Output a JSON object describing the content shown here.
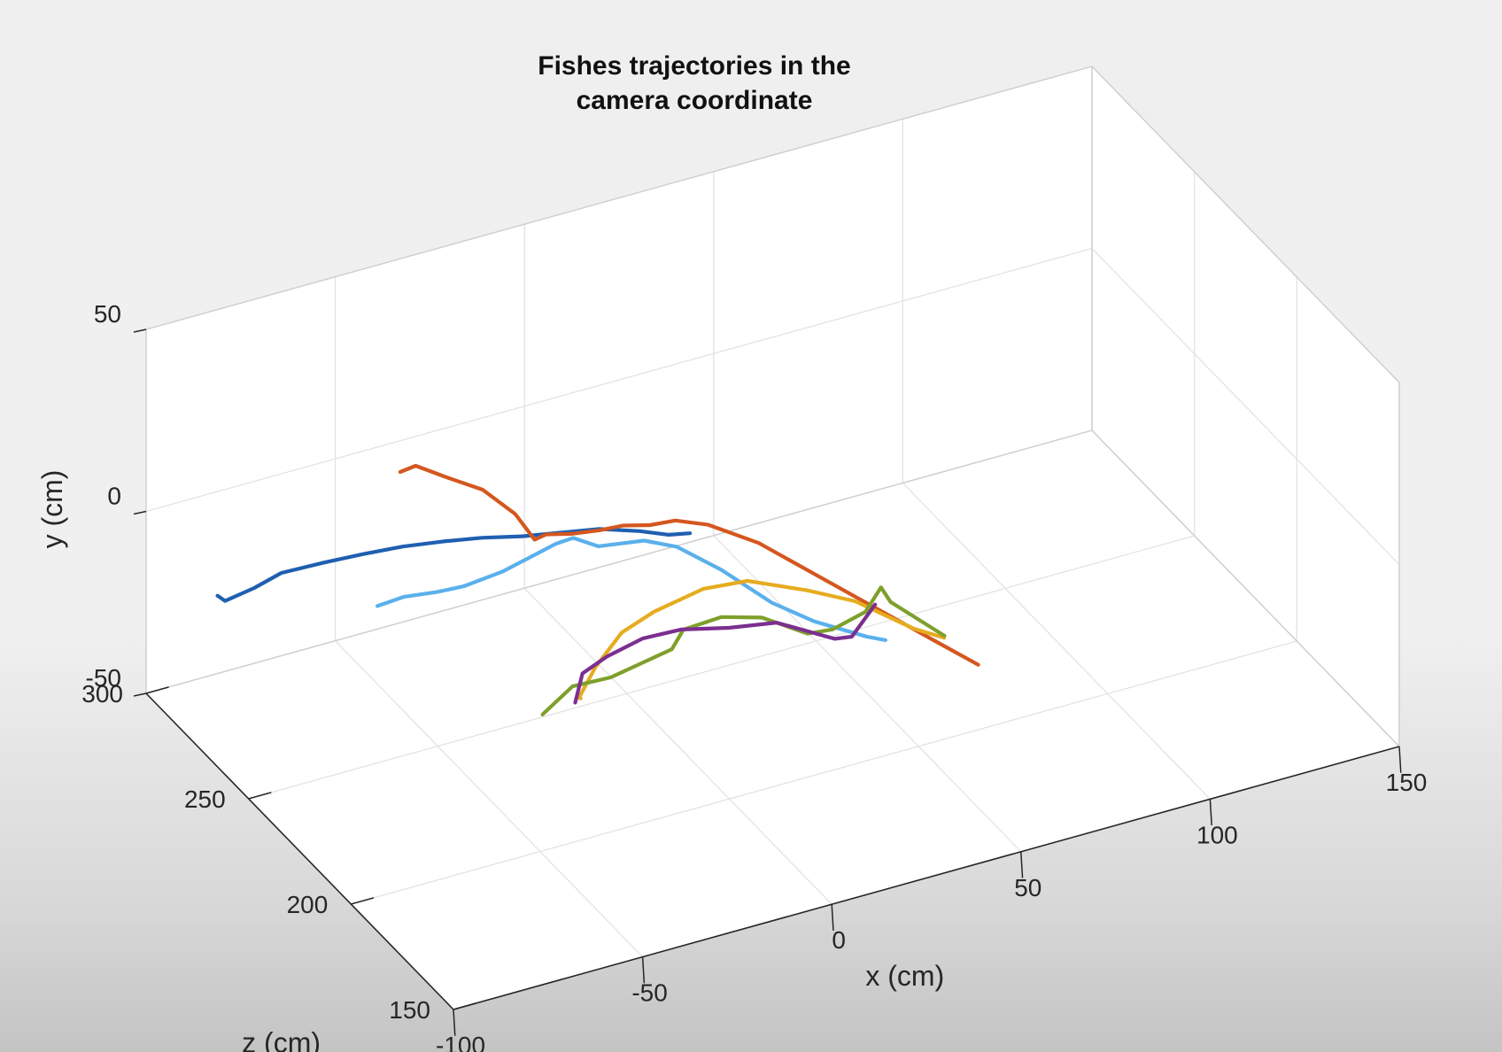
{
  "chart_data": {
    "type": "line3d",
    "title": [
      "Fishes trajectories in the",
      "camera coordinate"
    ],
    "xlabel": "x (cm)",
    "ylabel": "y (cm)",
    "zlabel": "z (cm)",
    "xlim": [
      -100,
      150
    ],
    "ylim": [
      -50,
      50
    ],
    "zlim": [
      150,
      300
    ],
    "xticks": [
      -100,
      -50,
      0,
      50,
      100,
      150
    ],
    "yticks": [
      -50,
      0,
      50
    ],
    "zticks": [
      150,
      200,
      250,
      300
    ],
    "xtick_labels": [
      "-100",
      "-50",
      "0",
      "50",
      "100",
      "150"
    ],
    "ytick_labels": [
      "-50",
      "0",
      "50"
    ],
    "ztick_labels": [
      "150",
      "200",
      "250",
      "300"
    ],
    "grid": true,
    "series": [
      {
        "color": "#1f5fb0",
        "points": [
          [
            -86,
            -22,
            291
          ],
          [
            -84,
            -24,
            291
          ],
          [
            -79,
            -19,
            286
          ],
          [
            -74,
            -14,
            282
          ],
          [
            -66,
            -10,
            276
          ],
          [
            -58,
            -7,
            271
          ],
          [
            -50,
            -5,
            267
          ],
          [
            -42,
            -3,
            262
          ],
          [
            -34,
            -2,
            258
          ],
          [
            -26,
            -1,
            253
          ],
          [
            -18,
            0,
            249
          ],
          [
            -10,
            1,
            245
          ],
          [
            -2,
            1,
            240
          ],
          [
            4,
            0,
            237
          ],
          [
            8,
            1,
            234
          ]
        ]
      },
      {
        "color": "#d4571f",
        "points": [
          [
            -48,
            12,
            272
          ],
          [
            -45,
            14,
            270
          ],
          [
            -38,
            10,
            268
          ],
          [
            -30,
            6,
            265
          ],
          [
            -23,
            -1,
            262
          ],
          [
            -19,
            -8,
            260
          ],
          [
            -17,
            -6,
            258
          ],
          [
            -11,
            -7,
            257
          ],
          [
            -5,
            -6,
            254
          ],
          [
            0,
            -5,
            252
          ],
          [
            5,
            -4,
            248
          ],
          [
            9,
            -1,
            243
          ],
          [
            15,
            -1,
            238
          ],
          [
            24,
            -4,
            230
          ],
          [
            34,
            -10,
            220
          ],
          [
            44,
            -16,
            210
          ],
          [
            54,
            -22,
            200
          ],
          [
            62,
            -27,
            193
          ]
        ]
      },
      {
        "color": "#5ab0ec",
        "points": [
          [
            -60,
            -15,
            261
          ],
          [
            -54,
            -13,
            259
          ],
          [
            -47,
            -12,
            256
          ],
          [
            -41,
            -11,
            254
          ],
          [
            -33,
            -7,
            250
          ],
          [
            -28,
            -4,
            248
          ],
          [
            -22,
            1,
            244
          ],
          [
            -18,
            2,
            243
          ],
          [
            -13,
            0,
            240
          ],
          [
            -3,
            1,
            236
          ],
          [
            4,
            -1,
            233
          ],
          [
            13,
            -7,
            228
          ],
          [
            22,
            -14,
            220
          ],
          [
            30,
            -18,
            214
          ],
          [
            40,
            -21,
            207
          ],
          [
            44,
            -22,
            205
          ]
        ]
      },
      {
        "color": "#e6ac1f",
        "points": [
          [
            -29,
            -25,
            219
          ],
          [
            -30,
            -24,
            218
          ],
          [
            -24,
            -19,
            221
          ],
          [
            -16,
            -13,
            223
          ],
          [
            -8,
            -9,
            222
          ],
          [
            4,
            -5,
            220
          ],
          [
            14,
            -4,
            217
          ],
          [
            26,
            -6,
            210
          ],
          [
            36,
            -9,
            205
          ],
          [
            47,
            -15,
            197
          ],
          [
            53,
            -17,
            193
          ]
        ]
      },
      {
        "color": "#7ea02c",
        "points": [
          [
            -38,
            -28,
            221
          ],
          [
            -29,
            -24,
            223
          ],
          [
            -20,
            -23,
            221
          ],
          [
            -13,
            -20,
            219
          ],
          [
            -6,
            -17,
            217
          ],
          [
            -4,
            -11,
            215
          ],
          [
            5,
            -9,
            213
          ],
          [
            14,
            -10,
            210
          ],
          [
            24,
            -15,
            206
          ],
          [
            30,
            -15,
            205
          ],
          [
            36,
            -9,
            200
          ],
          [
            39,
            -2,
            198
          ],
          [
            41,
            -6,
            197
          ],
          [
            52,
            -15,
            191
          ]
        ]
      },
      {
        "color": "#7b2f90",
        "points": [
          [
            -31,
            -25,
            218
          ],
          [
            -28,
            -19,
            220
          ],
          [
            -21,
            -17,
            221
          ],
          [
            -12,
            -14,
            220
          ],
          [
            -3,
            -13,
            218
          ],
          [
            8,
            -14,
            215
          ],
          [
            19,
            -14,
            212
          ],
          [
            30,
            -17,
            204
          ],
          [
            34,
            -17,
            203
          ],
          [
            36,
            -12,
            201
          ],
          [
            38,
            -7,
            199
          ]
        ]
      }
    ]
  }
}
